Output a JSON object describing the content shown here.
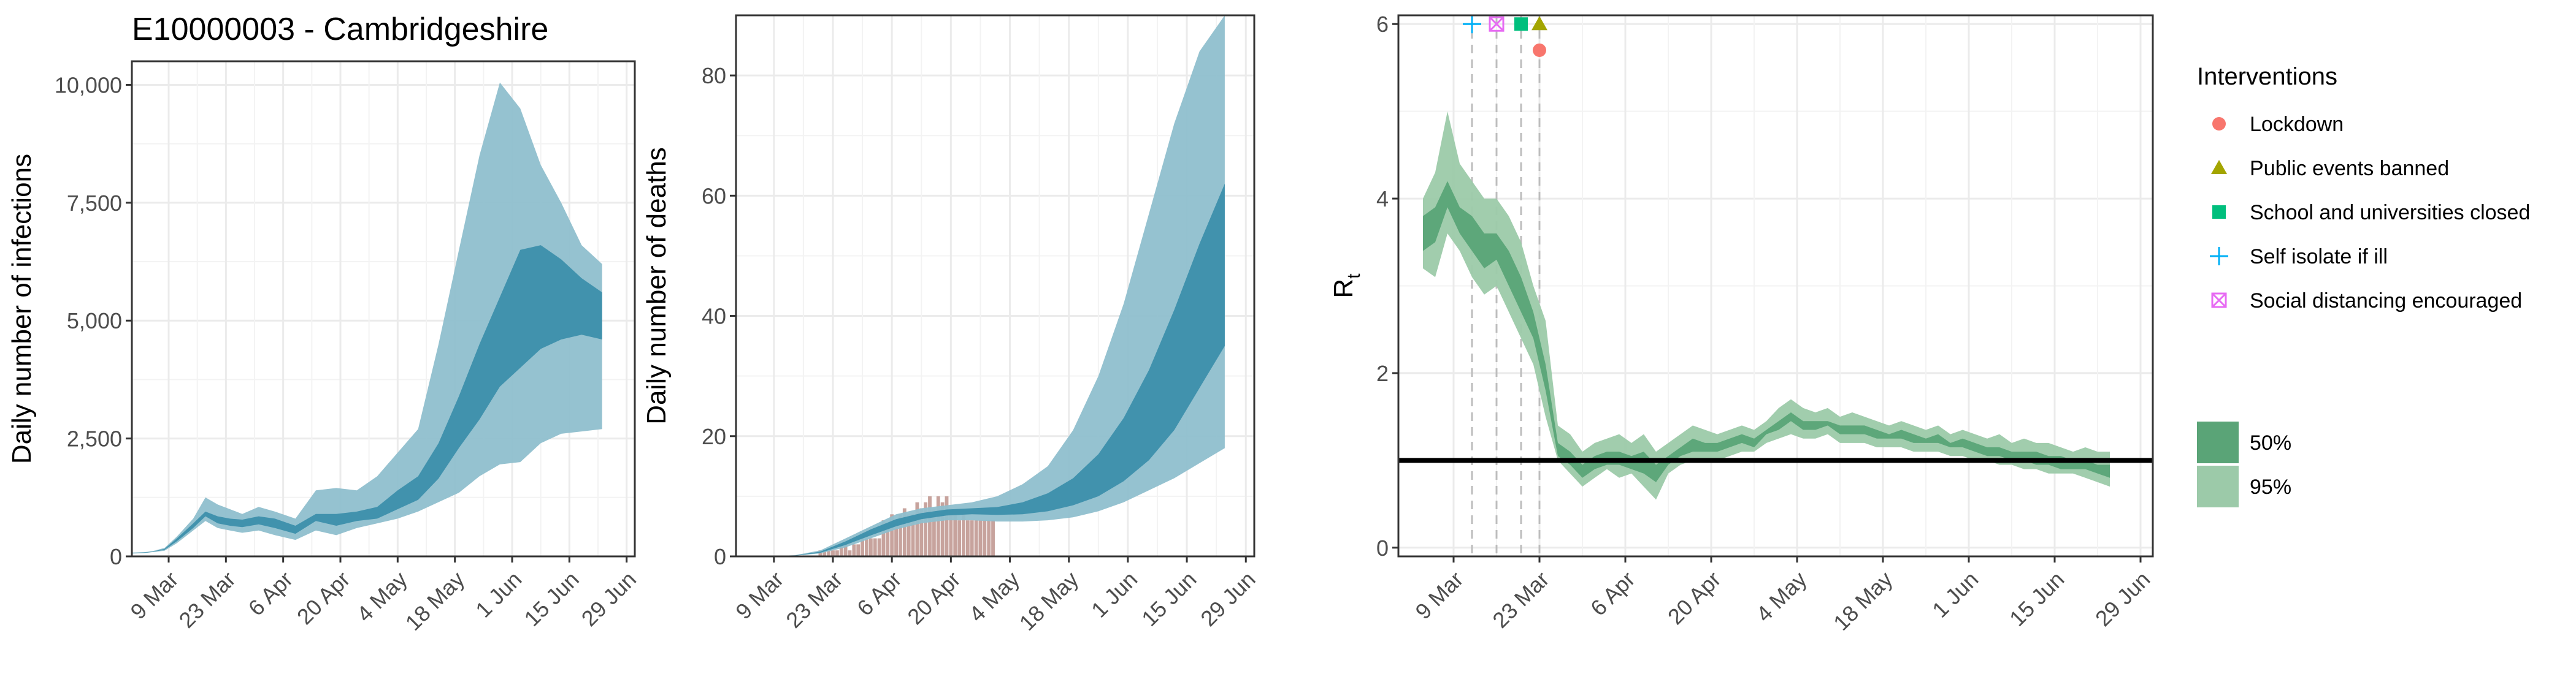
{
  "title": "E10000003 - Cambridgeshire",
  "colors": {
    "ci95_blue": "#8fbfce",
    "ci50_blue": "#3c8fab",
    "bars": "#c7a39d",
    "ci95_green": "#9ccaa9",
    "ci50_green": "#5aa477",
    "grid": "#ebebeb",
    "ref_line": "#000000",
    "vline": "#bdbdbd",
    "lockdown": "#f8766d",
    "public_events": "#a3a500",
    "schools": "#00bf7d",
    "self_isolate": "#00b0f6",
    "social_distancing": "#e76bf3"
  },
  "chart_data": [
    {
      "type": "area",
      "panel": "infections",
      "ylabel": "Daily number of infections",
      "ylim": [
        0,
        10500
      ],
      "yticks": [
        0,
        2500,
        5000,
        7500,
        10000
      ],
      "ytick_labels": [
        "0",
        "2,500",
        "5,000",
        "7,500",
        "10,000"
      ],
      "xtick_labels": [
        "9 Mar",
        "23 Mar",
        "6 Apr",
        "20 Apr",
        "4 May",
        "18 May",
        "1 Jun",
        "15 Jun",
        "29 Jun"
      ],
      "x_start": "2020-02-29",
      "grid": true,
      "series": [
        {
          "band": "95%",
          "x": [
            "2020-02-29",
            "2020-03-03",
            "2020-03-05",
            "2020-03-08",
            "2020-03-11",
            "2020-03-15",
            "2020-03-18",
            "2020-03-21",
            "2020-03-24",
            "2020-03-27",
            "2020-03-31",
            "2020-04-04",
            "2020-04-09",
            "2020-04-14",
            "2020-04-19",
            "2020-04-24",
            "2020-04-29",
            "2020-05-04",
            "2020-05-09",
            "2020-05-14",
            "2020-05-19",
            "2020-05-24",
            "2020-05-29",
            "2020-06-03",
            "2020-06-08",
            "2020-06-13",
            "2020-06-18",
            "2020-06-23"
          ],
          "upper": [
            80,
            90,
            110,
            180,
            420,
            800,
            1250,
            1100,
            1000,
            900,
            1050,
            950,
            800,
            1400,
            1450,
            1400,
            1700,
            2200,
            2700,
            4500,
            6500,
            8500,
            10050,
            9500,
            8300,
            7500,
            6600,
            6200
          ],
          "lower": [
            60,
            70,
            90,
            120,
            280,
            550,
            750,
            600,
            550,
            500,
            550,
            450,
            350,
            550,
            450,
            600,
            700,
            800,
            950,
            1150,
            1350,
            1700,
            1950,
            2000,
            2400,
            2600,
            2650,
            2700
          ]
        },
        {
          "band": "50%",
          "x": [
            "2020-02-29",
            "2020-03-03",
            "2020-03-05",
            "2020-03-08",
            "2020-03-11",
            "2020-03-15",
            "2020-03-18",
            "2020-03-21",
            "2020-03-24",
            "2020-03-27",
            "2020-03-31",
            "2020-04-04",
            "2020-04-09",
            "2020-04-14",
            "2020-04-19",
            "2020-04-24",
            "2020-04-29",
            "2020-05-04",
            "2020-05-09",
            "2020-05-14",
            "2020-05-19",
            "2020-05-24",
            "2020-05-29",
            "2020-06-03",
            "2020-06-08",
            "2020-06-13",
            "2020-06-18",
            "2020-06-23"
          ],
          "upper": [
            75,
            85,
            100,
            160,
            380,
            700,
            950,
            850,
            800,
            780,
            850,
            800,
            650,
            900,
            900,
            950,
            1050,
            1400,
            1700,
            2400,
            3400,
            4500,
            5500,
            6500,
            6600,
            6300,
            5900,
            5600
          ],
          "lower": [
            65,
            75,
            95,
            140,
            320,
            600,
            850,
            700,
            650,
            620,
            680,
            600,
            480,
            750,
            650,
            750,
            800,
            1000,
            1200,
            1650,
            2300,
            2900,
            3600,
            4000,
            4400,
            4600,
            4700,
            4600
          ]
        }
      ]
    },
    {
      "type": "bar+area",
      "panel": "deaths",
      "ylabel": "Daily number of deaths",
      "ylim": [
        0,
        90
      ],
      "yticks": [
        0,
        20,
        40,
        60,
        80
      ],
      "ytick_labels": [
        "0",
        "20",
        "40",
        "60",
        "80"
      ],
      "xtick_labels": [
        "9 Mar",
        "23 Mar",
        "6 Apr",
        "20 Apr",
        "4 May",
        "18 May",
        "1 Jun",
        "15 Jun",
        "29 Jun"
      ],
      "x_start": "2020-02-29",
      "grid": true,
      "bars": {
        "x": [
          "2020-03-20",
          "2020-03-21",
          "2020-03-22",
          "2020-03-23",
          "2020-03-24",
          "2020-03-25",
          "2020-03-26",
          "2020-03-27",
          "2020-03-28",
          "2020-03-29",
          "2020-03-30",
          "2020-03-31",
          "2020-04-01",
          "2020-04-02",
          "2020-04-03",
          "2020-04-04",
          "2020-04-05",
          "2020-04-06",
          "2020-04-07",
          "2020-04-08",
          "2020-04-09",
          "2020-04-10",
          "2020-04-11",
          "2020-04-12",
          "2020-04-13",
          "2020-04-14",
          "2020-04-15",
          "2020-04-16",
          "2020-04-17",
          "2020-04-18",
          "2020-04-19",
          "2020-04-20",
          "2020-04-21",
          "2020-04-22",
          "2020-04-23",
          "2020-04-24",
          "2020-04-25",
          "2020-04-26",
          "2020-04-27",
          "2020-04-28",
          "2020-04-29",
          "2020-04-30"
        ],
        "values": [
          1,
          1,
          1,
          1,
          1,
          2,
          2,
          1,
          2,
          2,
          3,
          3,
          3,
          3,
          3,
          6,
          5,
          7,
          6,
          7,
          8,
          7,
          7,
          9,
          8,
          9,
          10,
          8,
          10,
          9,
          10,
          8,
          7,
          6,
          7,
          6,
          6,
          6,
          6,
          6,
          6,
          6
        ]
      },
      "series": [
        {
          "band": "95%",
          "x": [
            "2020-02-29",
            "2020-03-08",
            "2020-03-14",
            "2020-03-20",
            "2020-03-26",
            "2020-04-01",
            "2020-04-07",
            "2020-04-13",
            "2020-04-19",
            "2020-04-25",
            "2020-05-01",
            "2020-05-07",
            "2020-05-13",
            "2020-05-19",
            "2020-05-25",
            "2020-05-31",
            "2020-06-06",
            "2020-06-12",
            "2020-06-18",
            "2020-06-24"
          ],
          "upper": [
            0,
            0,
            0.2,
            1,
            3,
            5,
            7,
            8,
            8.5,
            9,
            10,
            12,
            15,
            21,
            30,
            42,
            57,
            72,
            84,
            90
          ],
          "lower": [
            0,
            0,
            0.1,
            0.5,
            1.5,
            3,
            4.5,
            5.5,
            6,
            6,
            5.8,
            5.8,
            6,
            6.5,
            7.5,
            9,
            11,
            13,
            15.5,
            18
          ]
        },
        {
          "band": "50%",
          "x": [
            "2020-02-29",
            "2020-03-08",
            "2020-03-14",
            "2020-03-20",
            "2020-03-26",
            "2020-04-01",
            "2020-04-07",
            "2020-04-13",
            "2020-04-19",
            "2020-04-25",
            "2020-05-01",
            "2020-05-07",
            "2020-05-13",
            "2020-05-19",
            "2020-05-25",
            "2020-05-31",
            "2020-06-06",
            "2020-06-12",
            "2020-06-18",
            "2020-06-24"
          ],
          "upper": [
            0,
            0,
            0.15,
            0.8,
            2.5,
            4.5,
            6.2,
            7.2,
            7.8,
            8,
            8.2,
            9,
            10.5,
            13,
            17,
            23,
            31,
            41,
            52,
            62
          ],
          "lower": [
            0,
            0,
            0.12,
            0.6,
            1.9,
            3.5,
            5,
            6.2,
            6.8,
            7,
            6.9,
            7,
            7.5,
            8.5,
            10,
            12.5,
            16,
            21,
            28,
            35
          ]
        }
      ]
    },
    {
      "type": "area",
      "panel": "rt",
      "ylabel": "R",
      "ylabel_subscript": "t",
      "ylim": [
        -0.1,
        6.1
      ],
      "yticks": [
        0,
        2,
        4,
        6
      ],
      "ytick_labels": [
        "0",
        "2",
        "4",
        "6"
      ],
      "xtick_labels": [
        "9 Mar",
        "23 Mar",
        "6 Apr",
        "20 Apr",
        "4 May",
        "18 May",
        "1 Jun",
        "15 Jun",
        "29 Jun"
      ],
      "x_start": "2020-02-29",
      "grid": true,
      "reference_line": 1,
      "interventions": [
        {
          "key": "self_isolate",
          "date": "2020-03-12",
          "marker": "plus",
          "y": 6
        },
        {
          "key": "social_distancing",
          "date": "2020-03-16",
          "marker": "boxcross",
          "y": 6
        },
        {
          "key": "schools",
          "date": "2020-03-20",
          "marker": "square",
          "y": 6
        },
        {
          "key": "public_events",
          "date": "2020-03-23",
          "marker": "triangle",
          "y": 6
        },
        {
          "key": "lockdown",
          "date": "2020-03-23",
          "marker": "circle",
          "y": 5.7
        }
      ],
      "series": [
        {
          "band": "95%",
          "x": [
            "2020-03-04",
            "2020-03-06",
            "2020-03-08",
            "2020-03-10",
            "2020-03-12",
            "2020-03-14",
            "2020-03-16",
            "2020-03-18",
            "2020-03-20",
            "2020-03-22",
            "2020-03-24",
            "2020-03-26",
            "2020-03-28",
            "2020-03-30",
            "2020-04-01",
            "2020-04-03",
            "2020-04-05",
            "2020-04-07",
            "2020-04-09",
            "2020-04-11",
            "2020-04-13",
            "2020-04-15",
            "2020-04-17",
            "2020-04-19",
            "2020-04-21",
            "2020-04-23",
            "2020-04-25",
            "2020-04-27",
            "2020-04-29",
            "2020-05-01",
            "2020-05-03",
            "2020-05-05",
            "2020-05-07",
            "2020-05-09",
            "2020-05-11",
            "2020-05-13",
            "2020-05-15",
            "2020-05-17",
            "2020-05-19",
            "2020-05-21",
            "2020-05-23",
            "2020-05-25",
            "2020-05-27",
            "2020-05-29",
            "2020-05-31",
            "2020-06-02",
            "2020-06-04",
            "2020-06-06",
            "2020-06-08",
            "2020-06-10",
            "2020-06-12",
            "2020-06-14",
            "2020-06-16",
            "2020-06-18",
            "2020-06-20",
            "2020-06-22",
            "2020-06-24"
          ],
          "upper": [
            4.0,
            4.3,
            5.0,
            4.4,
            4.2,
            4.0,
            4.0,
            3.8,
            3.5,
            3.0,
            2.6,
            1.4,
            1.3,
            1.1,
            1.2,
            1.25,
            1.3,
            1.2,
            1.3,
            1.1,
            1.2,
            1.3,
            1.4,
            1.35,
            1.3,
            1.35,
            1.4,
            1.35,
            1.45,
            1.6,
            1.7,
            1.6,
            1.55,
            1.6,
            1.5,
            1.55,
            1.5,
            1.45,
            1.4,
            1.45,
            1.4,
            1.35,
            1.4,
            1.3,
            1.35,
            1.3,
            1.25,
            1.3,
            1.2,
            1.25,
            1.2,
            1.2,
            1.15,
            1.1,
            1.15,
            1.1,
            1.1
          ],
          "lower": [
            3.2,
            3.1,
            3.6,
            3.4,
            3.1,
            2.9,
            3.0,
            2.7,
            2.4,
            2.1,
            1.5,
            1.0,
            0.85,
            0.7,
            0.8,
            0.9,
            0.8,
            0.85,
            0.7,
            0.55,
            0.85,
            0.95,
            1.0,
            1.0,
            1.0,
            1.05,
            1.1,
            1.1,
            1.2,
            1.25,
            1.3,
            1.25,
            1.25,
            1.3,
            1.2,
            1.2,
            1.2,
            1.15,
            1.15,
            1.15,
            1.1,
            1.1,
            1.1,
            1.05,
            1.05,
            1.0,
            1.0,
            0.95,
            0.95,
            0.9,
            0.9,
            0.85,
            0.85,
            0.85,
            0.8,
            0.75,
            0.7
          ]
        },
        {
          "band": "50%",
          "x": [
            "2020-03-04",
            "2020-03-06",
            "2020-03-08",
            "2020-03-10",
            "2020-03-12",
            "2020-03-14",
            "2020-03-16",
            "2020-03-18",
            "2020-03-20",
            "2020-03-22",
            "2020-03-24",
            "2020-03-26",
            "2020-03-28",
            "2020-03-30",
            "2020-04-01",
            "2020-04-03",
            "2020-04-05",
            "2020-04-07",
            "2020-04-09",
            "2020-04-11",
            "2020-04-13",
            "2020-04-15",
            "2020-04-17",
            "2020-04-19",
            "2020-04-21",
            "2020-04-23",
            "2020-04-25",
            "2020-04-27",
            "2020-04-29",
            "2020-05-01",
            "2020-05-03",
            "2020-05-05",
            "2020-05-07",
            "2020-05-09",
            "2020-05-11",
            "2020-05-13",
            "2020-05-15",
            "2020-05-17",
            "2020-05-19",
            "2020-05-21",
            "2020-05-23",
            "2020-05-25",
            "2020-05-27",
            "2020-05-29",
            "2020-05-31",
            "2020-06-02",
            "2020-06-04",
            "2020-06-06",
            "2020-06-08",
            "2020-06-10",
            "2020-06-12",
            "2020-06-14",
            "2020-06-16",
            "2020-06-18",
            "2020-06-20",
            "2020-06-22",
            "2020-06-24"
          ],
          "upper": [
            3.8,
            3.9,
            4.2,
            3.9,
            3.8,
            3.6,
            3.6,
            3.4,
            3.1,
            2.7,
            2.1,
            1.2,
            1.1,
            0.95,
            1.05,
            1.1,
            1.1,
            1.05,
            1.1,
            0.95,
            1.05,
            1.15,
            1.25,
            1.2,
            1.2,
            1.25,
            1.3,
            1.25,
            1.35,
            1.45,
            1.55,
            1.45,
            1.45,
            1.45,
            1.4,
            1.4,
            1.4,
            1.35,
            1.3,
            1.35,
            1.3,
            1.25,
            1.3,
            1.2,
            1.25,
            1.2,
            1.15,
            1.15,
            1.1,
            1.1,
            1.1,
            1.05,
            1.05,
            1.0,
            1.0,
            0.95,
            0.95
          ],
          "lower": [
            3.4,
            3.5,
            3.9,
            3.6,
            3.4,
            3.2,
            3.3,
            3.0,
            2.7,
            2.4,
            1.8,
            1.05,
            0.95,
            0.8,
            0.9,
            0.95,
            0.95,
            0.9,
            0.85,
            0.75,
            0.95,
            1.05,
            1.1,
            1.1,
            1.1,
            1.15,
            1.2,
            1.15,
            1.3,
            1.35,
            1.45,
            1.35,
            1.35,
            1.4,
            1.3,
            1.3,
            1.3,
            1.25,
            1.25,
            1.25,
            1.2,
            1.2,
            1.2,
            1.15,
            1.15,
            1.1,
            1.05,
            1.05,
            1.0,
            1.0,
            0.95,
            0.95,
            0.9,
            0.9,
            0.9,
            0.85,
            0.8
          ]
        }
      ]
    }
  ],
  "legend": {
    "interventions_title": "Interventions",
    "interventions": [
      {
        "key": "lockdown",
        "label": "Lockdown",
        "marker": "circle"
      },
      {
        "key": "public_events",
        "label": "Public events banned",
        "marker": "triangle"
      },
      {
        "key": "schools",
        "label": "School and universities closed",
        "marker": "square"
      },
      {
        "key": "self_isolate",
        "label": "Self isolate if ill",
        "marker": "plus"
      },
      {
        "key": "social_distancing",
        "label": "Social distancing encouraged",
        "marker": "boxcross"
      }
    ],
    "ci": [
      {
        "label": "50%",
        "color": "#5aa477"
      },
      {
        "label": "95%",
        "color": "#9ccaa9"
      }
    ]
  }
}
